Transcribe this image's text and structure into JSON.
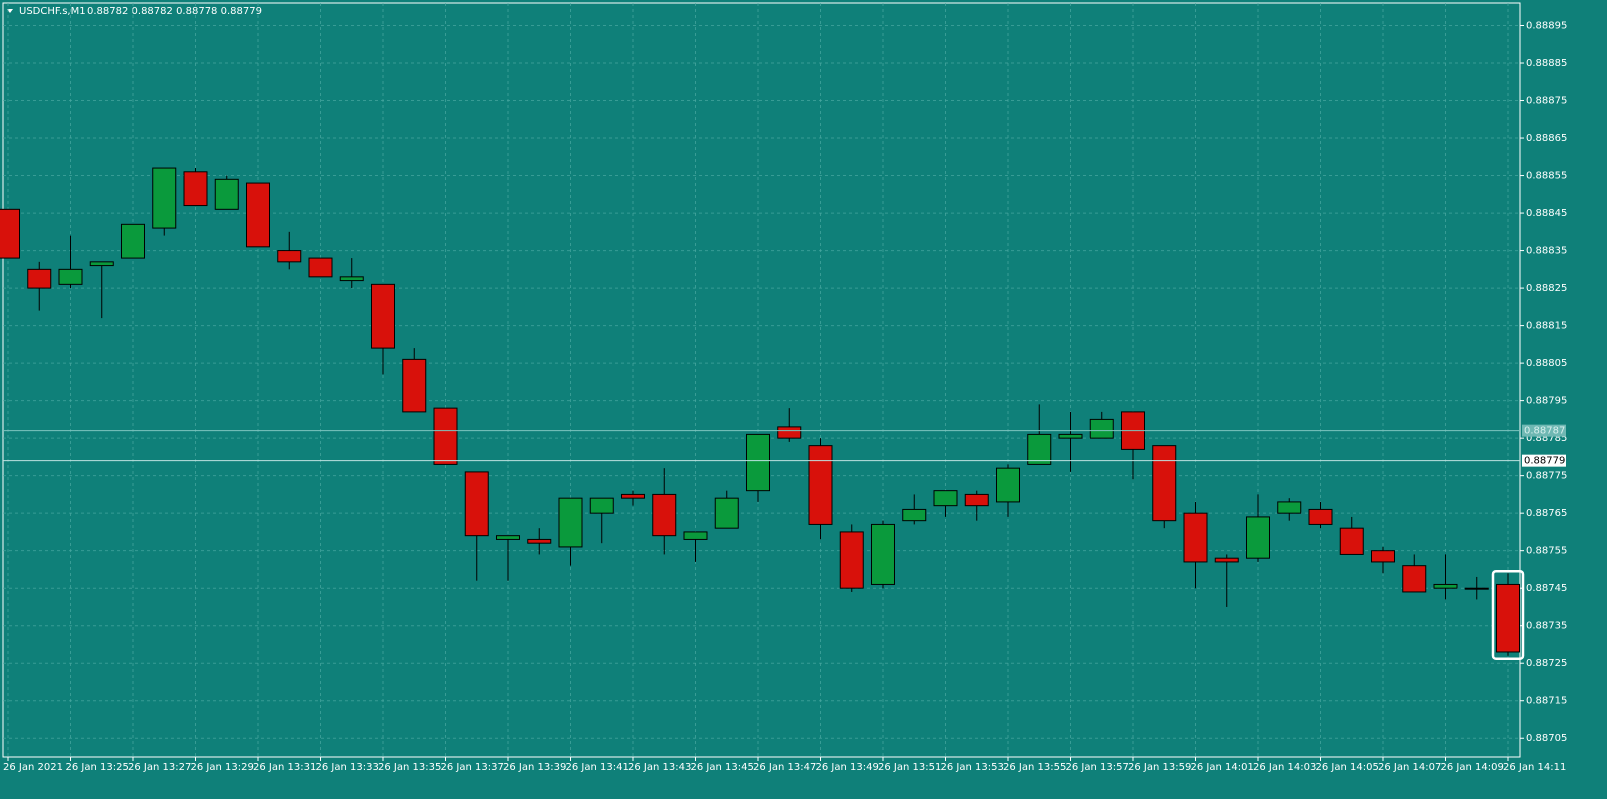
{
  "chart_data": {
    "type": "candlestick",
    "title": "USDCHF.s,M1",
    "subtitle": "0.88782 0.88782 0.88778 0.88779",
    "categories": [
      "26 Jan 2021",
      null,
      "26 Jan 13:25",
      null,
      "26 Jan 13:27",
      null,
      "26 Jan 13:29",
      null,
      "26 Jan 13:31",
      null,
      "26 Jan 13:33",
      null,
      "26 Jan 13:35",
      null,
      "26 Jan 13:37",
      null,
      "26 Jan 13:39",
      null,
      "26 Jan 13:41",
      null,
      "26 Jan 13:43",
      null,
      "26 Jan 13:45",
      null,
      "26 Jan 13:47",
      null,
      "26 Jan 13:49",
      null,
      "26 Jan 13:51",
      null,
      "26 Jan 13:53",
      null,
      "26 Jan 13:55",
      null,
      "26 Jan 13:57",
      null,
      "26 Jan 13:59",
      null,
      "26 Jan 14:01",
      null,
      "26 Jan 14:03",
      null,
      "26 Jan 14:05",
      null,
      "26 Jan 14:07",
      null,
      "26 Jan 14:09",
      null,
      "26 Jan 14:11"
    ],
    "open": [
      0.88846,
      0.8883,
      0.88826,
      0.88831,
      0.88833,
      0.88841,
      0.88856,
      0.88846,
      0.88853,
      0.88835,
      0.88833,
      0.88827,
      0.88826,
      0.88806,
      0.88793,
      0.88776,
      0.88758,
      0.88758,
      0.88756,
      0.88765,
      0.8877,
      0.8877,
      0.88758,
      0.88761,
      0.88771,
      0.88788,
      0.88783,
      0.8876,
      0.88746,
      0.88763,
      0.88767,
      0.8877,
      0.88768,
      0.88778,
      0.88785,
      0.88785,
      0.88792,
      0.88783,
      0.88765,
      0.88753,
      0.88753,
      0.88765,
      0.88766,
      0.88761,
      0.88755,
      0.88751,
      0.88745,
      0.88745,
      0.88746
    ],
    "high": [
      0.88846,
      0.88832,
      0.88839,
      0.88832,
      0.88842,
      0.88857,
      0.88857,
      0.88855,
      0.88853,
      0.8884,
      0.88833,
      0.88833,
      0.88826,
      0.88809,
      0.88793,
      0.88776,
      0.88759,
      0.88761,
      0.88769,
      0.88769,
      0.88771,
      0.88777,
      0.8876,
      0.88771,
      0.88786,
      0.88793,
      0.88785,
      0.88762,
      0.88763,
      0.8877,
      0.88771,
      0.88771,
      0.88778,
      0.88794,
      0.88792,
      0.88792,
      0.88792,
      0.88783,
      0.88768,
      0.88754,
      0.8877,
      0.88769,
      0.88768,
      0.88764,
      0.88756,
      0.88754,
      0.88754,
      0.88748,
      0.88749
    ],
    "low": [
      0.88833,
      0.88819,
      0.88825,
      0.88817,
      0.88833,
      0.88839,
      0.88847,
      0.88846,
      0.88836,
      0.8883,
      0.88828,
      0.88825,
      0.88802,
      0.88792,
      0.88778,
      0.88747,
      0.88747,
      0.88754,
      0.88751,
      0.88757,
      0.88767,
      0.88754,
      0.88752,
      0.88761,
      0.88768,
      0.88784,
      0.88758,
      0.88744,
      0.88745,
      0.88762,
      0.88764,
      0.88763,
      0.88764,
      0.88778,
      0.88776,
      0.88785,
      0.88774,
      0.88761,
      0.88745,
      0.8874,
      0.88752,
      0.88763,
      0.88761,
      0.88754,
      0.88749,
      0.88744,
      0.88742,
      0.88742,
      0.88727
    ],
    "close": [
      0.88833,
      0.88825,
      0.8883,
      0.88832,
      0.88842,
      0.88857,
      0.88847,
      0.88854,
      0.88836,
      0.88832,
      0.88828,
      0.88828,
      0.88809,
      0.88792,
      0.88778,
      0.88759,
      0.88759,
      0.88757,
      0.88769,
      0.88769,
      0.88769,
      0.88759,
      0.8876,
      0.88769,
      0.88786,
      0.88785,
      0.88762,
      0.88745,
      0.88762,
      0.88766,
      0.88771,
      0.88767,
      0.88777,
      0.88786,
      0.88786,
      0.8879,
      0.88782,
      0.88763,
      0.88752,
      0.88752,
      0.88764,
      0.88768,
      0.88762,
      0.88754,
      0.88752,
      0.88744,
      0.88746,
      0.88745,
      0.88728
    ],
    "up_color": "#0a9a3c",
    "down_color": "#d8110b",
    "ylim": [
      0.887,
      0.88901
    ],
    "yticks": [
      0.88895,
      0.88885,
      0.88875,
      0.88865,
      0.88855,
      0.88845,
      0.88835,
      0.88825,
      0.88815,
      0.88805,
      0.88795,
      0.88785,
      0.88775,
      0.88765,
      0.88755,
      0.88745,
      0.88735,
      0.88725,
      0.88715,
      0.88705
    ],
    "grid": true,
    "bid": 0.88779,
    "ask": 0.88787
  }
}
